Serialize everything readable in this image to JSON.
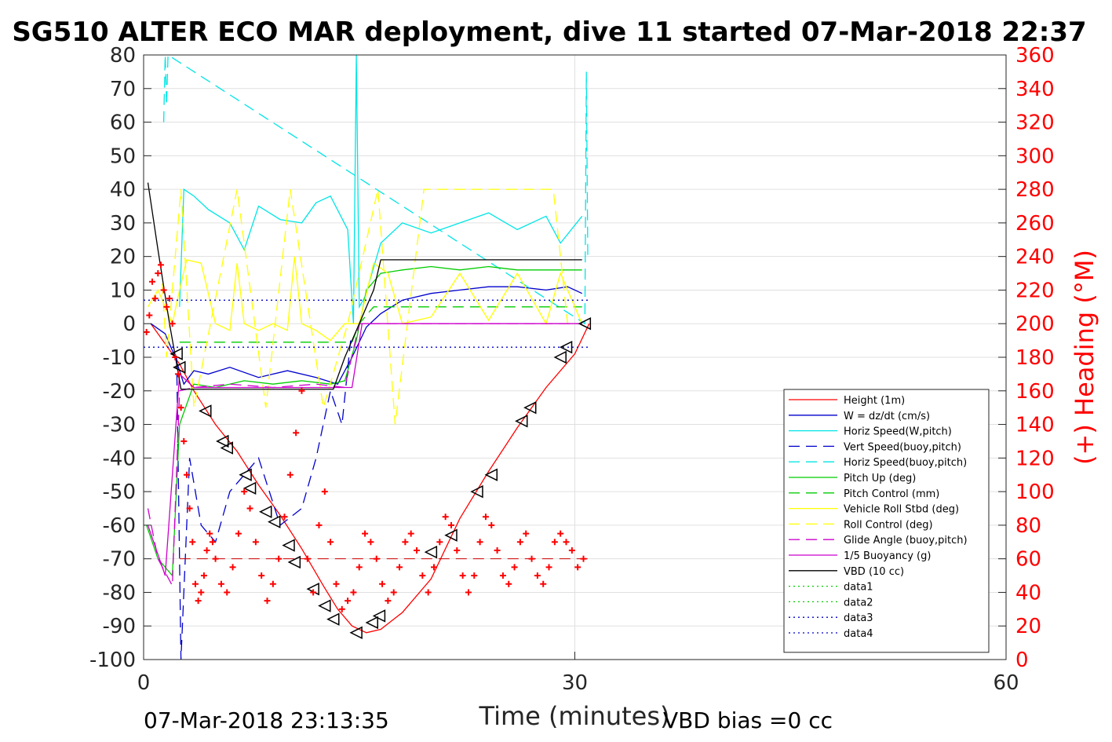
{
  "chart_data": {
    "type": "line",
    "title": "SG510 ALTER ECO MAR deployment, dive 11 started 07-Mar-2018 22:37",
    "xlabel": "Time (minutes)",
    "ylabel_right": "(+) Heading (°M)",
    "xlim": [
      0,
      60
    ],
    "ylim": [
      -100,
      80
    ],
    "ylim_right": [
      0,
      360
    ],
    "x_ticks": [
      "0",
      "30",
      "60"
    ],
    "y_ticks": [
      "80",
      "70",
      "60",
      "50",
      "40",
      "30",
      "20",
      "10",
      "0",
      "-10",
      "-20",
      "-30",
      "-40",
      "-50",
      "-60",
      "-70",
      "-80",
      "-90",
      "-100"
    ],
    "y_ticks_right": [
      "360",
      "340",
      "320",
      "300",
      "280",
      "260",
      "240",
      "220",
      "200",
      "180",
      "160",
      "140",
      "120",
      "100",
      "80",
      "60",
      "40",
      "20",
      "0"
    ],
    "grid": true,
    "legend_position": "right-lower",
    "footer_left": "07-Mar-2018 23:13:35",
    "footer_right": "VBD bias =0 cc",
    "colors": {
      "red": "#ff0000",
      "blue": "#0000cc",
      "cyan": "#00e5e5",
      "green": "#00cc00",
      "yellow": "#ffff00",
      "magenta": "#cc00cc",
      "black": "#000000"
    },
    "series": [
      {
        "name": "Height (1m)",
        "color": "#ff0000",
        "dash": "solid",
        "x": [
          0.5,
          1.5,
          2.5,
          3.5,
          5,
          6.5,
          8,
          9.5,
          11,
          12.5,
          13.5,
          14.5,
          15.5,
          16.5,
          18,
          20,
          22,
          24,
          26,
          28,
          30,
          31
        ],
        "y": [
          0,
          -6,
          -12,
          -20,
          -30,
          -38,
          -48,
          -57,
          -67,
          -78,
          -85,
          -90,
          -92,
          -91,
          -86,
          -76,
          -58,
          -44,
          -31,
          -19,
          -9,
          0
        ]
      },
      {
        "name": "W = dz/dt (cm/s)",
        "color": "#0000cc",
        "dash": "solid",
        "x": [
          0.5,
          1.5,
          2.2,
          2.8,
          3.5,
          4.5,
          6,
          8,
          10,
          12,
          13.5,
          14.5,
          15.5,
          16.5,
          18,
          20,
          22,
          24,
          26,
          28,
          29.5,
          30.5
        ],
        "y": [
          0,
          -3,
          -10,
          -18,
          -14,
          -15,
          -13,
          -16,
          -14,
          -16,
          -18,
          -10,
          -1,
          3,
          7,
          9,
          10,
          11,
          11,
          10,
          11,
          9
        ]
      },
      {
        "name": "Horiz Speed(W,pitch)",
        "color": "#00e5e5",
        "dash": "solid",
        "x": [
          2.5,
          2.8,
          3.5,
          4.5,
          6,
          7,
          8,
          9.5,
          11,
          12,
          13,
          14.2,
          14.6,
          14.8,
          15,
          15.4,
          16.5,
          18,
          20,
          22,
          24,
          26,
          28,
          29,
          30.5
        ],
        "y": [
          5,
          40,
          38,
          34,
          30,
          22,
          35,
          31,
          30,
          36,
          38,
          28,
          0,
          80,
          5,
          8,
          24,
          30,
          27,
          30,
          33,
          28,
          32,
          24,
          32
        ]
      },
      {
        "name": "Vert Speed(buoy,pitch)",
        "color": "#0000cc",
        "dash": "dashed",
        "x": [
          2.3,
          2.6,
          3.2,
          4,
          5,
          6,
          7,
          8,
          9.5,
          11,
          12,
          13,
          13.8,
          14.4
        ],
        "y": [
          -10,
          -100,
          -40,
          -60,
          -65,
          -50,
          -45,
          -40,
          -60,
          -55,
          -40,
          -20,
          -30,
          -5
        ]
      },
      {
        "name": "Horiz Speed(buoy,pitch)",
        "color": "#00e5e5",
        "dash": "dashed",
        "x": [
          1.4,
          1.5,
          1.6,
          1.7,
          30.7,
          30.8,
          30.9
        ],
        "y": [
          60,
          80,
          65,
          80,
          0,
          75,
          20
        ]
      },
      {
        "name": "Pitch Up (deg)",
        "color": "#00cc00",
        "dash": "solid",
        "x": [
          0.2,
          1,
          2,
          2.5,
          3.5,
          5,
          7,
          9,
          11,
          13,
          14,
          14.8,
          15.5,
          16.5,
          18,
          20,
          22,
          24,
          26,
          28,
          30.5
        ],
        "y": [
          -60,
          -70,
          -75,
          -30,
          -18,
          -19,
          -17,
          -18,
          -17,
          -18,
          -17,
          -5,
          10,
          15,
          16,
          17,
          16,
          17,
          16,
          16,
          16
        ]
      },
      {
        "name": "Pitch Control (mm)",
        "color": "#00cc00",
        "dash": "dashed",
        "x": [
          2.5,
          14.5,
          15,
          16,
          30.5
        ],
        "y": [
          -5.5,
          -5.5,
          0,
          5,
          5
        ]
      },
      {
        "name": "Vehicle Roll Stbd (deg)",
        "color": "#ffff00",
        "dash": "solid",
        "x": [
          0.3,
          1,
          2,
          2.5,
          3,
          4,
          5,
          6,
          6.5,
          7,
          8,
          9,
          10,
          10.5,
          11,
          12,
          13,
          14,
          15,
          16,
          17,
          18,
          20,
          22,
          24,
          26,
          28,
          29,
          30.5
        ],
        "y": [
          5,
          10,
          0,
          10,
          19,
          18,
          0,
          -2,
          18,
          0,
          -2,
          0,
          -2,
          20,
          0,
          -2,
          -5,
          0,
          0,
          18,
          15,
          0,
          2,
          15,
          1,
          15,
          0,
          15,
          0
        ]
      },
      {
        "name": "Roll Control (deg)",
        "color": "#ffff00",
        "dash": "dashed",
        "x": [
          1.3,
          1.6,
          2.6,
          3.5,
          6.5,
          8.5,
          10.2,
          12.5,
          14.2,
          16.3,
          17.5,
          19.5,
          22,
          24,
          26.5,
          28.5,
          29.5
        ],
        "y": [
          12,
          -10,
          40,
          -25,
          40,
          -25,
          40,
          -25,
          0,
          40,
          -30,
          40,
          40,
          40,
          40,
          40,
          0
        ]
      },
      {
        "name": "Glide Angle (buoy,pitch)",
        "color": "#cc00cc",
        "dash": "dashed",
        "x": [
          0.3,
          1,
          2,
          2.5,
          3.5,
          6,
          9,
          12,
          14,
          15,
          30.5
        ],
        "y": [
          -55,
          -70,
          -78,
          -20,
          -19,
          -18,
          -19,
          -18,
          -19,
          0,
          0
        ]
      },
      {
        "name": "1/5 Buoyancy (g)",
        "color": "#cc00cc",
        "dash": "solid",
        "x": [
          0.3,
          1.5,
          2.5,
          3.5,
          14.5,
          15.2,
          30.5
        ],
        "y": [
          -60,
          -75,
          -15,
          -19,
          -19,
          0,
          0
        ]
      },
      {
        "name": "VBD (10 cc)",
        "color": "#000000",
        "dash": "solid",
        "x": [
          0.3,
          1,
          1.8,
          2.3,
          2.6,
          13.2,
          14,
          15,
          16,
          16.5,
          30.5
        ],
        "y": [
          42,
          22,
          0,
          -12,
          -19.5,
          -19.5,
          -10,
          0,
          10,
          19,
          19
        ]
      },
      {
        "name": "data1",
        "color": "#00cc00",
        "dash": "dotted",
        "x": [],
        "y": []
      },
      {
        "name": "data2",
        "color": "#00cc00",
        "dash": "dotted",
        "x": [],
        "y": []
      },
      {
        "name": "data3",
        "color": "#0000cc",
        "dash": "dotted",
        "x": [
          0,
          31
        ],
        "y": [
          7,
          7
        ]
      },
      {
        "name": "data4",
        "color": "#0000cc",
        "dash": "dotted",
        "x": [
          0,
          31
        ],
        "y": [
          -7,
          -7
        ]
      }
    ],
    "heading_points": {
      "name": "Heading",
      "color": "#ff0000",
      "marker": "+",
      "axis": "right",
      "x": [
        0.2,
        0.4,
        0.6,
        0.8,
        1.0,
        1.2,
        1.4,
        1.6,
        1.8,
        2.0,
        2.2,
        2.4,
        2.6,
        2.8,
        3.0,
        3.2,
        3.4,
        3.6,
        3.8,
        4.0,
        4.2,
        4.4,
        4.6,
        4.8,
        5.0,
        5.4,
        5.8,
        6.2,
        6.6,
        7.0,
        7.4,
        7.8,
        8.2,
        8.6,
        9.0,
        9.4,
        9.8,
        10.2,
        10.6,
        11.0,
        11.4,
        11.8,
        12.2,
        12.6,
        13.0,
        13.4,
        13.8,
        14.2,
        14.6,
        15.0,
        15.4,
        15.8,
        16.2,
        16.6,
        17.0,
        17.4,
        17.8,
        18.2,
        18.6,
        19.0,
        19.4,
        19.8,
        20.2,
        20.6,
        21.0,
        21.4,
        21.8,
        22.2,
        22.6,
        23.0,
        23.4,
        23.8,
        24.2,
        24.6,
        25.0,
        25.4,
        25.8,
        26.2,
        26.6,
        27.0,
        27.4,
        27.8,
        28.2,
        28.6,
        29.0,
        29.4,
        29.8,
        30.2,
        30.6
      ],
      "y": [
        195,
        205,
        225,
        215,
        230,
        235,
        220,
        210,
        215,
        200,
        180,
        170,
        150,
        130,
        110,
        90,
        70,
        45,
        35,
        40,
        50,
        65,
        75,
        70,
        60,
        45,
        40,
        55,
        75,
        100,
        90,
        70,
        50,
        35,
        45,
        60,
        85,
        110,
        135,
        160,
        60,
        40,
        80,
        100,
        70,
        45,
        30,
        35,
        40,
        55,
        75,
        70,
        60,
        45,
        35,
        40,
        55,
        70,
        75,
        65,
        50,
        40,
        55,
        70,
        85,
        80,
        65,
        50,
        40,
        50,
        70,
        85,
        80,
        65,
        50,
        45,
        55,
        70,
        75,
        60,
        50,
        45,
        55,
        70,
        75,
        70,
        65,
        55,
        60
      ]
    },
    "height_markers": {
      "x": [
        2.3,
        2.5,
        4.3,
        5.5,
        5.8,
        7.1,
        7.4,
        8.5,
        9.1,
        10.1,
        10.5,
        11.8,
        12.6,
        13.2,
        14.8,
        15.9,
        16.4,
        20.0,
        21.4,
        23.2,
        24.2,
        26.3,
        26.9,
        29.0,
        29.4,
        30.7
      ],
      "y": [
        -9,
        -13,
        -26,
        -35,
        -37,
        -45,
        -49,
        -56,
        -59,
        -66,
        -71,
        -79,
        -84,
        -88,
        -92,
        -89,
        -87,
        -68,
        -63,
        -50,
        -45,
        -29,
        -25,
        -10,
        -7,
        0
      ]
    }
  }
}
